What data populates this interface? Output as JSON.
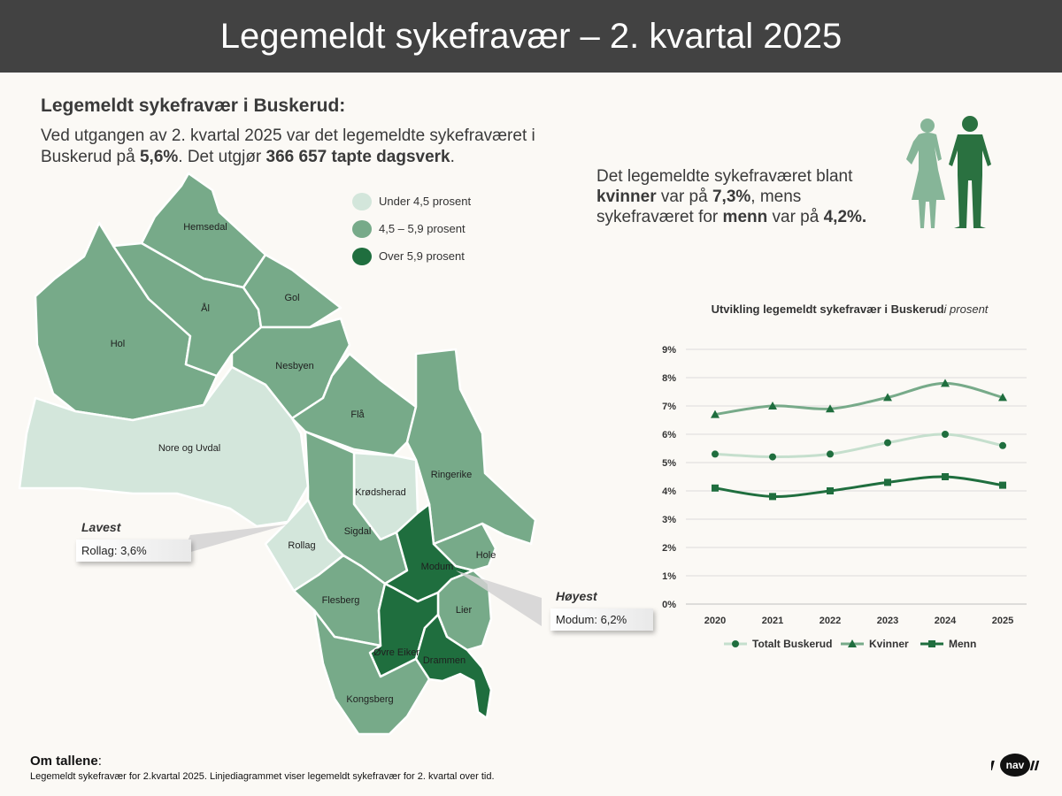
{
  "header": {
    "title": "Legemeldt sykefravær – 2. kvartal 2025"
  },
  "intro": {
    "heading": "Legemeldt sykefravær i Buskerud:",
    "text_1": "Ved utgangen av 2. kvartal 2025 var det legemeldte sykefraværet i Buskerud på ",
    "value_1": "5,6%",
    "text_2": ". Det utgjør ",
    "value_2": "366 657 tapte dagsverk",
    "text_3": "."
  },
  "gender": {
    "text_1": "Det legemeldte sykefraværet blant ",
    "women_word": "kvinner",
    "text_2": " var på ",
    "women_value": "7,3%",
    "text_3": ", mens sykefraværet for ",
    "men_word": "menn",
    "text_4": " var på ",
    "men_value": "4,2%."
  },
  "colors": {
    "low": "#d3e6db",
    "mid": "#77aa89",
    "high": "#1f6e3e",
    "women_silhouette": "#86b598",
    "men_silhouette": "#2a7140"
  },
  "map": {
    "legend": [
      {
        "label": "Under 4,5 prosent",
        "color": "#d3e6db"
      },
      {
        "label": "4,5 – 5,9 prosent",
        "color": "#77aa89"
      },
      {
        "label": "Over 5,9 prosent",
        "color": "#1f6e3e"
      }
    ],
    "municipalities": [
      {
        "name": "Hemsedal",
        "level": "mid"
      },
      {
        "name": "Ål",
        "level": "mid"
      },
      {
        "name": "Hol",
        "level": "mid"
      },
      {
        "name": "Gol",
        "level": "mid"
      },
      {
        "name": "Nesbyen",
        "level": "mid"
      },
      {
        "name": "Flå",
        "level": "mid"
      },
      {
        "name": "Nore og Uvdal",
        "level": "low"
      },
      {
        "name": "Ringerike",
        "level": "mid"
      },
      {
        "name": "Krødsherad",
        "level": "low"
      },
      {
        "name": "Sigdal",
        "level": "mid"
      },
      {
        "name": "Rollag",
        "level": "low"
      },
      {
        "name": "Hole",
        "level": "mid"
      },
      {
        "name": "Modum",
        "level": "high"
      },
      {
        "name": "Flesberg",
        "level": "mid"
      },
      {
        "name": "Lier",
        "level": "mid"
      },
      {
        "name": "Øvre Eiker",
        "level": "high"
      },
      {
        "name": "Drammen",
        "level": "high"
      },
      {
        "name": "Kongsberg",
        "level": "mid"
      }
    ],
    "lowest": {
      "title": "Lavest",
      "text": "Rollag: 3,6%"
    },
    "highest": {
      "title": "Høyest",
      "text": "Modum: 6,2%"
    }
  },
  "chart_data": {
    "type": "line",
    "title": "Utvikling legemeldt sykefravær i Buskerud",
    "title_italic": "i prosent",
    "xlabel": "",
    "ylabel": "",
    "x": [
      "2020",
      "2021",
      "2022",
      "2023",
      "2024",
      "2025"
    ],
    "ylim": [
      0,
      9
    ],
    "yticks": [
      "0%",
      "1%",
      "2%",
      "3%",
      "4%",
      "5%",
      "6%",
      "7%",
      "8%",
      "9%"
    ],
    "grid": true,
    "legend_position": "bottom",
    "series": [
      {
        "name": "Totalt Buskerud",
        "values": [
          5.3,
          5.2,
          5.3,
          5.7,
          6.0,
          5.6
        ],
        "color": "#c5dfcd",
        "marker": "circle"
      },
      {
        "name": "Kvinner",
        "values": [
          6.7,
          7.0,
          6.9,
          7.3,
          7.8,
          7.3
        ],
        "color": "#77aa89",
        "marker": "triangle"
      },
      {
        "name": "Menn",
        "values": [
          4.1,
          3.8,
          4.0,
          4.3,
          4.5,
          4.2
        ],
        "color": "#1f6e3e",
        "marker": "square"
      }
    ]
  },
  "footer": {
    "title": "Om tallene",
    "text": "Legemeldt sykefravær for 2.kvartal 2025. Linjediagrammet viser legemeldt sykefravær for 2. kvartal over tid."
  },
  "logo": {
    "text": "nav"
  }
}
